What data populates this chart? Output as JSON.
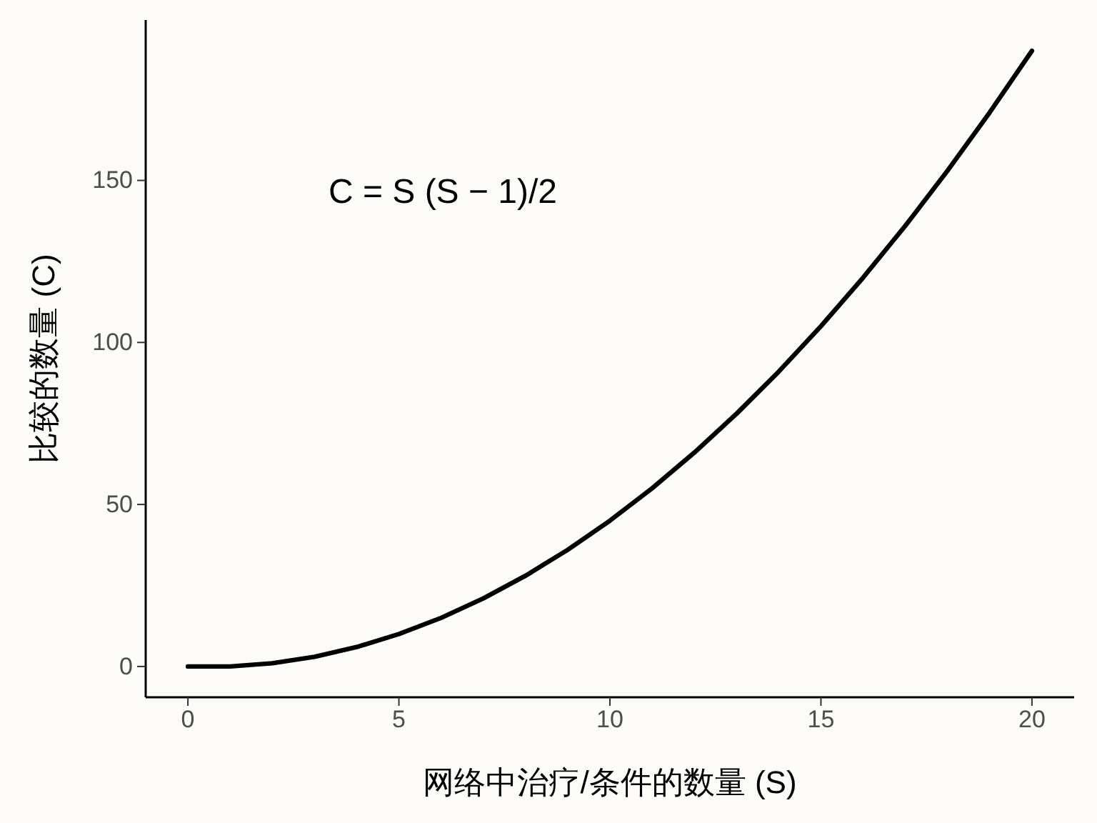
{
  "chart_data": {
    "type": "line",
    "xlabel": "网络中治疗/条件的数量 (S)",
    "ylabel": "比较的数量 (C)",
    "x": [
      0,
      1,
      2,
      3,
      4,
      5,
      6,
      7,
      8,
      9,
      10,
      11,
      12,
      13,
      14,
      15,
      16,
      17,
      18,
      19,
      20
    ],
    "series": [
      {
        "color": "#000000",
        "values": [
          0,
          0,
          1,
          3,
          6,
          10,
          15,
          21,
          28,
          36,
          45,
          55,
          66,
          78,
          91,
          105,
          120,
          136,
          153,
          171,
          190
        ]
      }
    ],
    "xlim": [
      -1,
      21
    ],
    "ylim": [
      -9.5,
      199.5
    ],
    "xticks": [
      0,
      5,
      10,
      15,
      20
    ],
    "yticks": [
      0,
      50,
      100,
      150
    ],
    "grid": false,
    "marker": "none",
    "line_style": "solid",
    "annotations": [
      "C = S (S − 1)/2"
    ]
  }
}
